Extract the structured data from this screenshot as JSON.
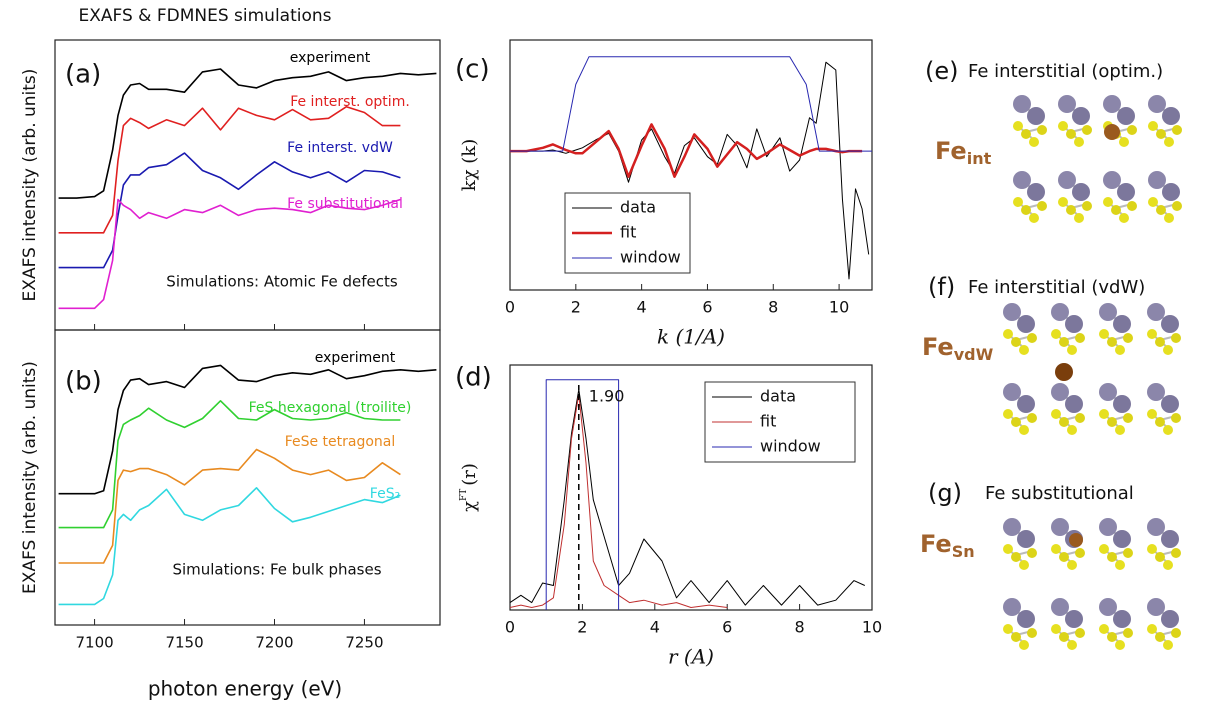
{
  "title": "EXAFS & FDMNES simulations",
  "chart_data": [
    {
      "type": "line",
      "panel_label": "(a)",
      "ylabel": "EXAFS intensity (arb. units)",
      "annotation": "Simulations: Atomic Fe defects",
      "xlim": [
        7078,
        7292
      ],
      "ylim": [
        0,
        10
      ],
      "x": [
        7080,
        7090,
        7100,
        7105,
        7110,
        7113,
        7116,
        7120,
        7125,
        7130,
        7140,
        7150,
        7160,
        7170,
        7180,
        7190,
        7200,
        7210,
        7220,
        7230,
        7240,
        7250,
        7260,
        7270,
        7280,
        7290
      ],
      "series": [
        {
          "name": "experiment",
          "color": "#000000",
          "values": [
            4.55,
            4.55,
            4.6,
            4.8,
            6.2,
            7.4,
            8.1,
            8.45,
            8.5,
            8.3,
            8.3,
            8.2,
            8.9,
            9.0,
            8.45,
            8.35,
            8.6,
            8.7,
            8.75,
            8.9,
            8.6,
            8.7,
            8.75,
            8.85,
            8.8,
            8.85
          ]
        },
        {
          "name": "Fe interst. optim.",
          "color": "#e02020",
          "values": [
            3.35,
            3.35,
            3.35,
            3.35,
            3.95,
            5.85,
            7.05,
            7.3,
            7.15,
            6.95,
            7.25,
            7.05,
            7.65,
            6.9,
            7.65,
            7.4,
            7.25,
            7.6,
            7.25,
            7.3,
            7.7,
            7.5,
            7.05,
            7.05,
            null,
            null
          ]
        },
        {
          "name": "Fe interst. vdW",
          "color": "#1a1ab0",
          "values": [
            2.15,
            2.15,
            2.15,
            2.15,
            2.75,
            3.95,
            5.0,
            5.35,
            5.35,
            5.6,
            5.7,
            6.1,
            5.5,
            5.25,
            4.85,
            5.35,
            5.8,
            5.45,
            5.25,
            5.45,
            5.1,
            5.5,
            5.45,
            5.25,
            null,
            null
          ]
        },
        {
          "name": "Fe substitutional",
          "color": "#e020d0",
          "values": [
            0.75,
            0.75,
            0.75,
            1.05,
            2.4,
            4.5,
            4.3,
            4.15,
            3.85,
            4.05,
            3.85,
            4.15,
            4.05,
            4.3,
            3.95,
            4.15,
            4.2,
            4.15,
            4.05,
            4.3,
            4.2,
            4.15,
            4.3,
            4.5,
            null,
            null
          ]
        }
      ]
    },
    {
      "type": "line",
      "panel_label": "(b)",
      "ylabel": "EXAFS intensity (arb. units)",
      "xlabel": "photon energy (eV)",
      "annotation": "Simulations: Fe bulk phases",
      "xlim": [
        7078,
        7292
      ],
      "ylim": [
        0,
        10
      ],
      "xticks": [
        7100,
        7150,
        7200,
        7250
      ],
      "x": [
        7080,
        7090,
        7100,
        7105,
        7110,
        7113,
        7116,
        7120,
        7125,
        7130,
        7140,
        7150,
        7160,
        7170,
        7180,
        7190,
        7200,
        7210,
        7220,
        7230,
        7240,
        7250,
        7260,
        7270,
        7280,
        7290
      ],
      "series": [
        {
          "name": "experiment",
          "color": "#000000",
          "values": [
            4.45,
            4.45,
            4.45,
            4.55,
            5.9,
            7.3,
            7.95,
            8.3,
            8.35,
            8.15,
            8.25,
            8.05,
            8.7,
            8.8,
            8.3,
            8.25,
            8.45,
            8.55,
            8.5,
            8.65,
            8.35,
            8.45,
            8.6,
            8.65,
            8.6,
            8.65
          ]
        },
        {
          "name": "FeS hexagonal (troilite)",
          "color": "#30d030",
          "values": [
            3.3,
            3.3,
            3.3,
            3.3,
            3.9,
            6.25,
            6.8,
            6.95,
            7.1,
            7.35,
            6.95,
            6.7,
            7.0,
            7.6,
            7.0,
            6.95,
            7.3,
            7.0,
            6.95,
            7.0,
            7.2,
            7.0,
            6.95,
            6.95,
            null,
            null
          ]
        },
        {
          "name": "FeSe tetragonal",
          "color": "#e88a20",
          "values": [
            2.1,
            2.1,
            2.1,
            2.1,
            2.7,
            4.9,
            5.25,
            5.2,
            5.3,
            5.3,
            5.1,
            4.75,
            5.25,
            5.3,
            5.25,
            5.95,
            5.65,
            5.25,
            5.1,
            5.25,
            4.9,
            5.0,
            5.5,
            5.1,
            null,
            null
          ]
        },
        {
          "name": "FeS₂",
          "color": "#30d8e0",
          "values": [
            0.7,
            0.7,
            0.7,
            0.9,
            1.7,
            3.55,
            3.75,
            3.55,
            3.9,
            4.05,
            4.6,
            3.75,
            3.55,
            3.9,
            4.05,
            4.65,
            3.95,
            3.5,
            3.65,
            3.85,
            4.05,
            4.25,
            4.15,
            4.4,
            null,
            null
          ]
        }
      ]
    },
    {
      "type": "line",
      "panel_label": "(c)",
      "ylabel": "kχ (k)",
      "xlabel": "k (1/A)",
      "legend": "lower left",
      "xlim": [
        0,
        11
      ],
      "ylim": [
        -1.25,
        1
      ],
      "xticks": [
        0,
        2,
        4,
        6,
        8,
        10
      ],
      "x": [
        0,
        0.5,
        1,
        1.3,
        1.7,
        2,
        2.2,
        2.6,
        3,
        3.3,
        3.6,
        4,
        4.3,
        4.7,
        5,
        5.3,
        5.6,
        6,
        6.3,
        6.6,
        6.9,
        7.2,
        7.5,
        7.8,
        8.2,
        8.5,
        8.8,
        9.1,
        9.3,
        9.6,
        9.9,
        10.1,
        10.3,
        10.5,
        10.7,
        10.9
      ],
      "series": [
        {
          "name": "data",
          "color": "#000000",
          "values": [
            0,
            0,
            0,
            0.01,
            -0.02,
            0.01,
            0.03,
            0.1,
            0.16,
            0,
            -0.28,
            0.1,
            0.2,
            -0.05,
            -0.2,
            0.05,
            0.12,
            -0.05,
            -0.12,
            0.15,
            0.05,
            -0.15,
            0.2,
            -0.05,
            0.12,
            -0.18,
            -0.08,
            0.3,
            0.25,
            0.8,
            0.73,
            -0.43,
            -1.15,
            -0.34,
            -0.52,
            -0.93
          ]
        },
        {
          "name": "fit",
          "color": "#d42020",
          "values": [
            0,
            0,
            0.03,
            0.06,
            0.01,
            -0.02,
            -0.02,
            0.08,
            0.18,
            0.02,
            -0.23,
            0.05,
            0.24,
            0.02,
            -0.23,
            -0.05,
            0.15,
            0.02,
            -0.14,
            -0.03,
            0.08,
            0.02,
            -0.07,
            -0.02,
            0.06,
            0.01,
            -0.04,
            0,
            0.02,
            0.02,
            0,
            -0.01,
            0,
            0,
            0,
            null
          ]
        },
        {
          "name": "window",
          "color": "#2828b0",
          "x": [
            0,
            1.6,
            2,
            2.4,
            8.5,
            9,
            9.4,
            11
          ],
          "values": [
            0,
            0,
            0.6,
            0.85,
            0.85,
            0.6,
            0,
            0
          ]
        }
      ]
    },
    {
      "type": "line",
      "panel_label": "(d)",
      "ylabel": {
        "main": "χ",
        "sup": "FT",
        "tail": "(r)"
      },
      "xlabel": "r (A)",
      "legend": "upper right",
      "xlim": [
        0,
        10
      ],
      "ylim": [
        0,
        1
      ],
      "xticks": [
        0,
        2,
        4,
        6,
        8,
        10
      ],
      "annotation": {
        "value": 1.9,
        "label": "1.90"
      },
      "x": [
        0,
        0.3,
        0.6,
        0.9,
        1.2,
        1.5,
        1.7,
        1.9,
        2.1,
        2.3,
        2.6,
        3.0,
        3.3,
        3.7,
        4.2,
        4.6,
        5,
        5.5,
        6,
        6.5,
        7,
        7.5,
        8,
        8.5,
        9,
        9.5,
        9.8
      ],
      "series": [
        {
          "name": "data",
          "color": "#000000",
          "values": [
            0.03,
            0.06,
            0.03,
            0.11,
            0.1,
            0.45,
            0.72,
            0.9,
            0.7,
            0.45,
            0.3,
            0.1,
            0.15,
            0.29,
            0.2,
            0.05,
            0.12,
            0.03,
            0.12,
            0.02,
            0.1,
            0.02,
            0.1,
            0.02,
            0.04,
            0.12,
            0.1
          ]
        },
        {
          "name": "fit",
          "color": "#c03030",
          "values": [
            0.01,
            0.02,
            0.01,
            0.02,
            0.05,
            0.35,
            0.7,
            0.88,
            0.6,
            0.2,
            0.1,
            0.06,
            0.03,
            0.04,
            0.02,
            0.03,
            0.01,
            0.02,
            0.01,
            null,
            null,
            null,
            null,
            null,
            null,
            null,
            null
          ]
        },
        {
          "name": "window",
          "color": "#2828b0",
          "x": [
            1,
            1,
            3,
            3
          ],
          "values": [
            0,
            0.94,
            0.94,
            0
          ]
        }
      ]
    }
  ],
  "structures": [
    {
      "panel_label": "(e)",
      "title": "Fe interstitial (optim.)",
      "atom_label": {
        "main": "Fe",
        "sub": "int"
      }
    },
    {
      "panel_label": "(f)",
      "title": "Fe interstitial (vdW)",
      "atom_label": {
        "main": "Fe",
        "sub": "vdW"
      }
    },
    {
      "panel_label": "(g)",
      "title": "Fe substitutional",
      "atom_label": {
        "main": "Fe",
        "sub": "Sn"
      }
    }
  ]
}
